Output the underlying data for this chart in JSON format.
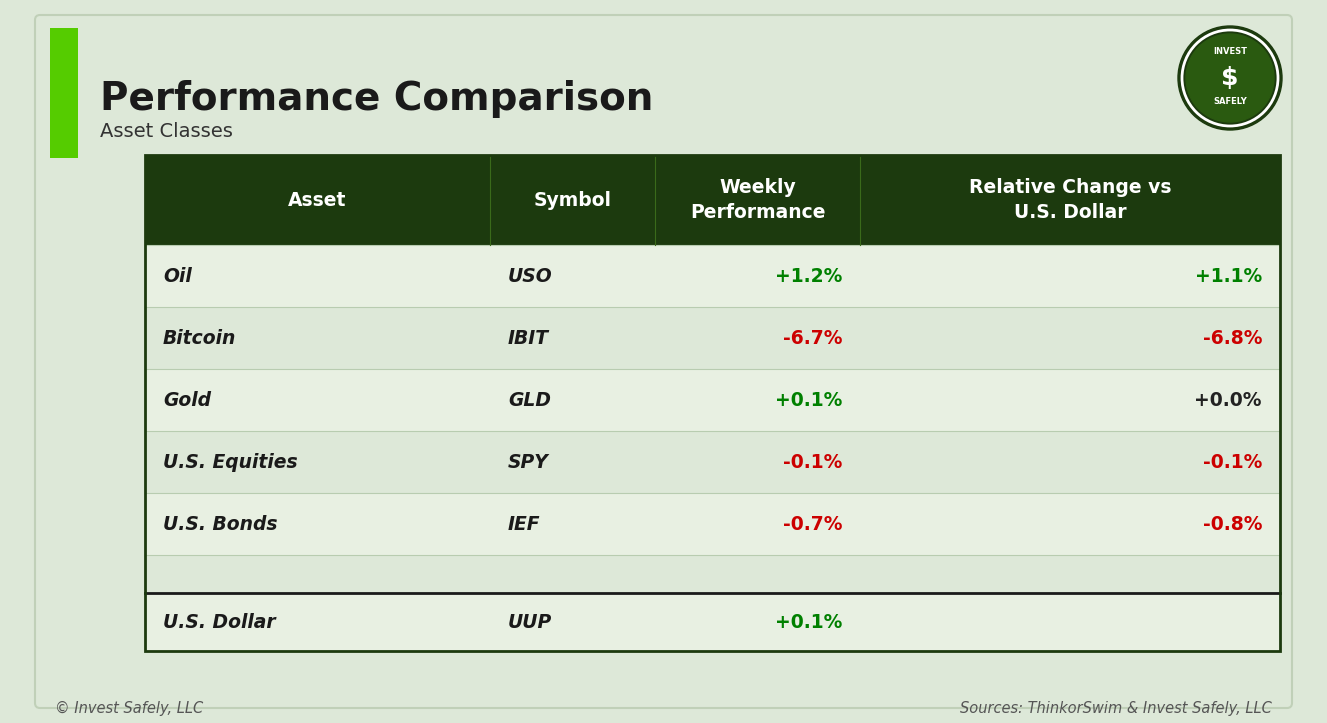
{
  "title": "Performance Comparison",
  "subtitle": "Asset Classes",
  "bg_color": "#dde8d8",
  "outer_bg": "#dde8d8",
  "header_bg": "#1c3a0e",
  "header_text_color": "#ffffff",
  "row_bg_light": "#e8f0e2",
  "row_bg_dark": "#dde8d8",
  "table_border_color": "#1c3a0e",
  "col_headers": [
    "Asset",
    "Symbol",
    "Weekly\nPerformance",
    "Relative Change vs\nU.S. Dollar"
  ],
  "rows": [
    {
      "asset": "Oil",
      "symbol": "USO",
      "weekly": "+1.2%",
      "relative": "+1.1%",
      "weekly_color": "#008000",
      "relative_color": "#008000"
    },
    {
      "asset": "Bitcoin",
      "symbol": "IBIT",
      "weekly": "-6.7%",
      "relative": "-6.8%",
      "weekly_color": "#cc0000",
      "relative_color": "#cc0000"
    },
    {
      "asset": "Gold",
      "symbol": "GLD",
      "weekly": "+0.1%",
      "relative": "+0.0%",
      "weekly_color": "#008000",
      "relative_color": "#222222"
    },
    {
      "asset": "U.S. Equities",
      "symbol": "SPY",
      "weekly": "-0.1%",
      "relative": "-0.1%",
      "weekly_color": "#cc0000",
      "relative_color": "#cc0000"
    },
    {
      "asset": "U.S. Bonds",
      "symbol": "IEF",
      "weekly": "-0.7%",
      "relative": "-0.8%",
      "weekly_color": "#cc0000",
      "relative_color": "#cc0000"
    }
  ],
  "footer_row": {
    "asset": "U.S. Dollar",
    "symbol": "UUP",
    "weekly": "+0.1%",
    "weekly_color": "#008000"
  },
  "footer_left": "© Invest Safely, LLC",
  "footer_right": "Sources: ThinkorSwim & Invest Safely, LLC",
  "accent_color": "#55cc00",
  "title_fontsize": 28,
  "subtitle_fontsize": 14,
  "header_fontsize": 13.5,
  "data_fontsize": 13.5,
  "footer_fontsize": 10.5,
  "logo_text1": "INVEST",
  "logo_text2": "SAFELY",
  "logo_symbol": "$",
  "logo_bg": "#1c3a0e",
  "logo_ring": "#ffffff"
}
